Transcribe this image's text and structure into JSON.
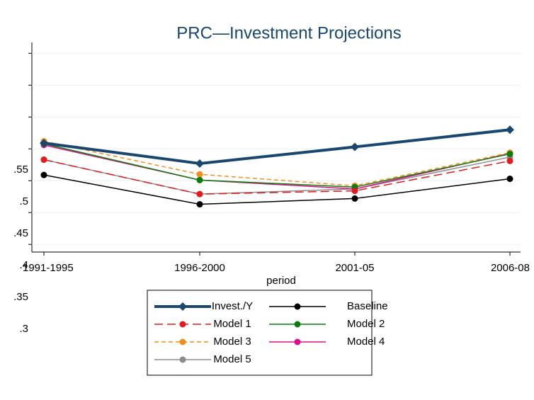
{
  "chart_data": {
    "type": "line",
    "title": "PRC—Investment Projections",
    "x_label": "period",
    "categories": [
      "1991-1995",
      "1996-2000",
      "2001-05",
      "2006-08"
    ],
    "series": [
      {
        "name": "Invest./Y",
        "color": "#1a476f",
        "dash": "solid",
        "width": 4,
        "marker": "diamond",
        "values": [
          0.459,
          0.427,
          0.453,
          0.48
        ]
      },
      {
        "name": "Baseline",
        "color": "#000000",
        "dash": "solid",
        "width": 1.5,
        "marker": "circle",
        "values": [
          0.409,
          0.363,
          0.372,
          0.403
        ]
      },
      {
        "name": "Model 1",
        "color": "#e41a1c",
        "dash": "long",
        "width": 1.5,
        "marker": "circle",
        "values": [
          0.433,
          0.379,
          0.384,
          0.431
        ]
      },
      {
        "name": "Model 2",
        "color": "#0a7d0a",
        "dash": "solid",
        "width": 1.5,
        "marker": "circle",
        "values": [
          0.458,
          0.401,
          0.39,
          0.442
        ]
      },
      {
        "name": "Model 3",
        "color": "#f28e1c",
        "dash": "short",
        "width": 1.5,
        "marker": "circle",
        "values": [
          0.462,
          0.41,
          0.392,
          0.444
        ]
      },
      {
        "name": "Model 4",
        "color": "#e0108c",
        "dash": "solid",
        "width": 1.5,
        "marker": "circle",
        "values": [
          0.456,
          0.401,
          0.387,
          0.443
        ]
      },
      {
        "name": "Model 5",
        "color": "#8c8c8c",
        "dash": "solid",
        "width": 1.5,
        "marker": "circle",
        "values": [
          0.433,
          0.379,
          0.387,
          0.437
        ]
      }
    ],
    "ylim": [
      0.288,
      0.617
    ],
    "yticks": [
      {
        "value": 0.3,
        "label": ".3"
      },
      {
        "value": 0.35,
        "label": ".35"
      },
      {
        "value": 0.4,
        "label": ".4"
      },
      {
        "value": 0.45,
        "label": ".45"
      },
      {
        "value": 0.5,
        "label": ".5"
      },
      {
        "value": 0.55,
        "label": ".55"
      },
      {
        "value": 0.6,
        "label": null
      }
    ],
    "grid": true,
    "legend": "bottom"
  }
}
